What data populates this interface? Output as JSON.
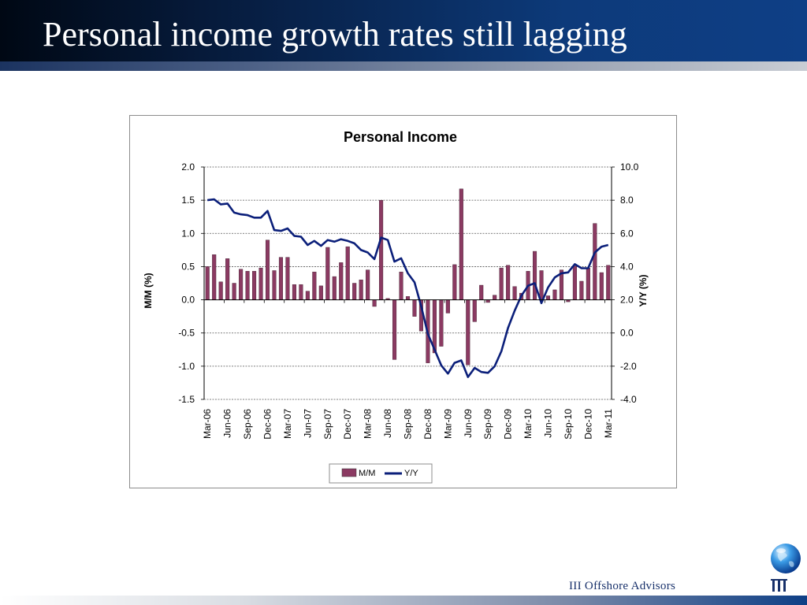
{
  "slide": {
    "title": "Personal income growth rates still lagging",
    "brand": "III Offshore Advisors",
    "logo_mark": "III",
    "globe_icon": "globe-icon"
  },
  "colors": {
    "header_dark": "#000814",
    "header_blue": "#0e3f86",
    "bar": "#8b3a62",
    "line": "#0b1f7a",
    "brand_text": "#17306a"
  },
  "chart_data": {
    "type": "bar",
    "title": "Personal Income",
    "ylabel": "M/M (%)",
    "y2label": "Y/Y (%)",
    "ylim": [
      -1.5,
      2.0
    ],
    "y2lim": [
      -4.0,
      10.0
    ],
    "yticks": [
      "2.0",
      "1.5",
      "1.0",
      "0.5",
      "0.0",
      "-0.5",
      "-1.0",
      "-1.5"
    ],
    "y2ticks": [
      "10.0",
      "8.0",
      "6.0",
      "4.0",
      "2.0",
      "0.0",
      "-2.0",
      "-4.0"
    ],
    "grid": true,
    "legend_position": "bottom",
    "x_tick_labels": [
      "Mar-06",
      "Jun-06",
      "Sep-06",
      "Dec-06",
      "Mar-07",
      "Jun-07",
      "Sep-07",
      "Dec-07",
      "Mar-08",
      "Jun-08",
      "Sep-08",
      "Dec-08",
      "Mar-09",
      "Jun-09",
      "Sep-09",
      "Dec-09",
      "Mar-10",
      "Jun-10",
      "Sep-10",
      "Dec-10",
      "Mar-11"
    ],
    "series": [
      {
        "name": "M/M",
        "type": "bar",
        "axis": "left",
        "values": [
          0.5,
          0.68,
          0.27,
          0.62,
          0.25,
          0.46,
          0.43,
          0.43,
          0.48,
          0.9,
          0.44,
          0.64,
          0.64,
          0.23,
          0.23,
          0.13,
          0.42,
          0.21,
          0.79,
          0.35,
          0.56,
          0.8,
          0.25,
          0.3,
          0.45,
          -0.1,
          1.5,
          0.02,
          -0.9,
          0.42,
          0.05,
          -0.25,
          -0.47,
          -0.95,
          -0.8,
          -0.7,
          -0.2,
          0.53,
          1.67,
          -0.98,
          -0.33,
          0.22,
          -0.04,
          0.07,
          0.48,
          0.52,
          0.2,
          0.1,
          0.43,
          0.73,
          0.44,
          0.06,
          0.15,
          0.45,
          -0.03,
          0.51,
          0.28,
          0.48,
          1.15,
          0.41,
          0.52
        ]
      },
      {
        "name": "Y/Y",
        "type": "line",
        "axis": "right",
        "values": [
          8.0,
          8.05,
          7.75,
          7.8,
          7.25,
          7.15,
          7.1,
          6.95,
          6.95,
          7.35,
          6.2,
          6.15,
          6.3,
          5.85,
          5.8,
          5.3,
          5.55,
          5.25,
          5.6,
          5.5,
          5.65,
          5.55,
          5.4,
          5.0,
          4.85,
          4.45,
          5.75,
          5.6,
          4.3,
          4.5,
          3.6,
          3.05,
          1.6,
          -0.05,
          -1.0,
          -1.95,
          -2.45,
          -1.8,
          -1.65,
          -2.65,
          -2.1,
          -2.35,
          -2.4,
          -2.0,
          -1.1,
          0.3,
          1.35,
          2.25,
          2.85,
          3.0,
          1.8,
          2.75,
          3.35,
          3.6,
          3.65,
          4.15,
          3.9,
          3.9,
          4.85,
          5.2,
          5.3
        ]
      }
    ]
  }
}
